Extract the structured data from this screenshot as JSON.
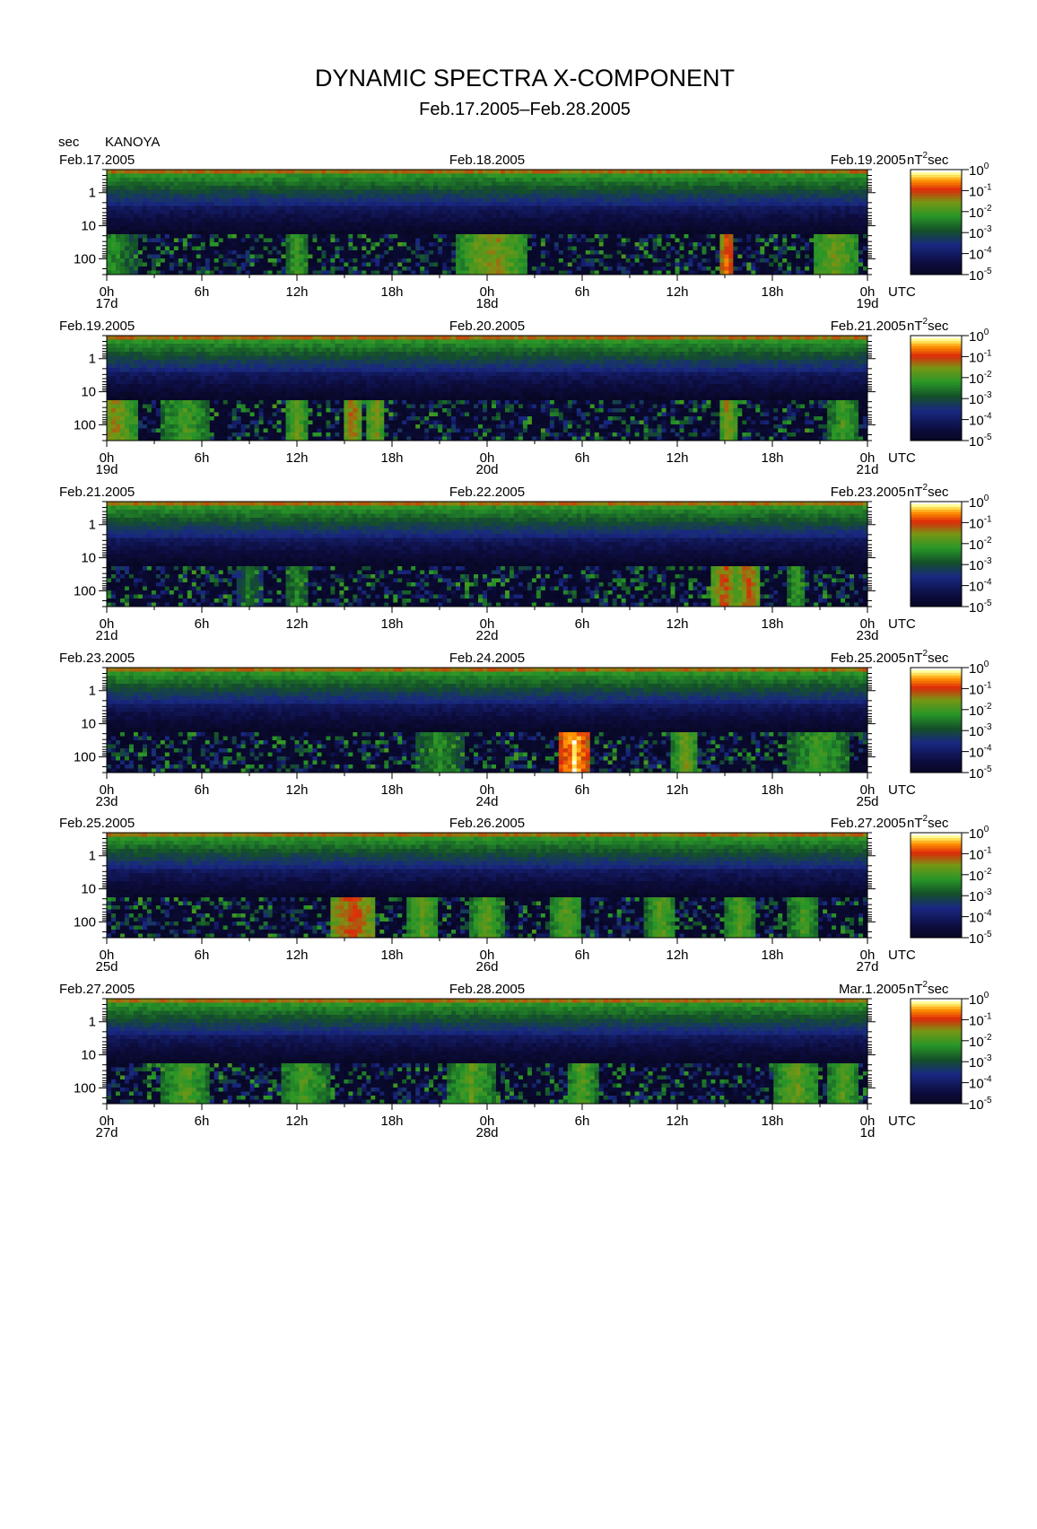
{
  "title": "DYNAMIC SPECTRA X-COMPONENT",
  "subtitle": "Feb.17.2005–Feb.28.2005",
  "station": "KANOYA",
  "y_unit": "sec",
  "colorbar_unit_base": "nT",
  "colorbar_unit_exp": "2",
  "colorbar_unit_tail": "sec",
  "time_axis_label": "UTC",
  "chart_data": {
    "type": "heatmap",
    "description_of_axes": "x: time UTC (0h–48h per panel), y: period in seconds (log scale, 0.2–300 s, increasing downward), color: power nT^2 sec (log)",
    "y_ticks": [
      "1",
      "10",
      "100"
    ],
    "x_ticks": [
      "0h",
      "6h",
      "12h",
      "18h",
      "0h",
      "6h",
      "12h",
      "18h",
      "0h"
    ],
    "colorbar": {
      "scale": "log",
      "range": [
        1e-05,
        1
      ],
      "tick_mantissa": [
        "10",
        "10",
        "10",
        "10",
        "10",
        "10"
      ],
      "tick_exponents": [
        "0",
        "-1",
        "-2",
        "-3",
        "-4",
        "-5"
      ],
      "colors": [
        "#000000",
        "#101050",
        "#1a2a8a",
        "#1e5a1e",
        "#2fa02f",
        "#7f9f10",
        "#c83010",
        "#ff2a00",
        "#ff9a00",
        "#ffff80",
        "#ffffff"
      ]
    },
    "panels": [
      {
        "left_date": "Feb.17.2005",
        "mid_date": "Feb.18.2005",
        "right_date": "Feb.19.2005",
        "day_labels": [
          "17d",
          "18d",
          "19d"
        ],
        "events": [
          {
            "t": 0.5,
            "w": 1.5,
            "lvl": 0.65
          },
          {
            "t": 12,
            "w": 0.8,
            "lvl": 0.7
          },
          {
            "t": 23.5,
            "w": 1.5,
            "lvl": 0.75
          },
          {
            "t": 24.5,
            "w": 2,
            "lvl": 0.8
          },
          {
            "t": 39.2,
            "w": 0.4,
            "lvl": 0.95
          },
          {
            "t": 46,
            "w": 1.5,
            "lvl": 0.78
          }
        ]
      },
      {
        "left_date": "Feb.19.2005",
        "mid_date": "Feb.20.2005",
        "right_date": "Feb.21.2005",
        "day_labels": [
          "19d",
          "20d",
          "21d"
        ],
        "events": [
          {
            "t": 0.5,
            "w": 1.5,
            "lvl": 0.8
          },
          {
            "t": 5,
            "w": 1.5,
            "lvl": 0.72
          },
          {
            "t": 12,
            "w": 0.8,
            "lvl": 0.76
          },
          {
            "t": 15.5,
            "w": 0.6,
            "lvl": 0.85
          },
          {
            "t": 17,
            "w": 0.6,
            "lvl": 0.8
          },
          {
            "t": 39.2,
            "w": 0.5,
            "lvl": 0.82
          },
          {
            "t": 46.5,
            "w": 1,
            "lvl": 0.72
          }
        ]
      },
      {
        "left_date": "Feb.21.2005",
        "mid_date": "Feb.22.2005",
        "right_date": "Feb.23.2005",
        "day_labels": [
          "21d",
          "22d",
          "23d"
        ],
        "events": [
          {
            "t": 9,
            "w": 0.8,
            "lvl": 0.6
          },
          {
            "t": 12,
            "w": 0.8,
            "lvl": 0.65
          },
          {
            "t": 39,
            "w": 0.8,
            "lvl": 0.86
          },
          {
            "t": 40.5,
            "w": 0.8,
            "lvl": 0.86
          },
          {
            "t": 43.5,
            "w": 0.6,
            "lvl": 0.7
          }
        ]
      },
      {
        "left_date": "Feb.23.2005",
        "mid_date": "Feb.24.2005",
        "right_date": "Feb.25.2005",
        "day_labels": [
          "23d",
          "24d",
          "25d"
        ],
        "events": [
          {
            "t": 21,
            "w": 1.5,
            "lvl": 0.66
          },
          {
            "t": 29.5,
            "w": 1,
            "lvl": 1.0
          },
          {
            "t": 36.5,
            "w": 0.8,
            "lvl": 0.78
          },
          {
            "t": 45,
            "w": 2,
            "lvl": 0.7
          }
        ]
      },
      {
        "left_date": "Feb.25.2005",
        "mid_date": "Feb.26.2005",
        "right_date": "Feb.27.2005",
        "day_labels": [
          "25d",
          "26d",
          "27d"
        ],
        "events": [
          {
            "t": 15.5,
            "w": 1.5,
            "lvl": 0.88
          },
          {
            "t": 20,
            "w": 1,
            "lvl": 0.76
          },
          {
            "t": 24,
            "w": 1,
            "lvl": 0.75
          },
          {
            "t": 29,
            "w": 1,
            "lvl": 0.75
          },
          {
            "t": 35,
            "w": 1,
            "lvl": 0.74
          },
          {
            "t": 40,
            "w": 1,
            "lvl": 0.74
          },
          {
            "t": 44,
            "w": 1,
            "lvl": 0.72
          }
        ]
      },
      {
        "left_date": "Feb.27.2005",
        "mid_date": "Feb.28.2005",
        "right_date": "Mar.1.2005",
        "day_labels": [
          "27d",
          "28d",
          "1d"
        ],
        "events": [
          {
            "t": 5,
            "w": 1.5,
            "lvl": 0.74
          },
          {
            "t": 12.5,
            "w": 1.5,
            "lvl": 0.72
          },
          {
            "t": 23,
            "w": 1.5,
            "lvl": 0.74
          },
          {
            "t": 30,
            "w": 1,
            "lvl": 0.74
          },
          {
            "t": 43.5,
            "w": 1.5,
            "lvl": 0.76
          },
          {
            "t": 46.5,
            "w": 1,
            "lvl": 0.74
          }
        ]
      }
    ]
  }
}
